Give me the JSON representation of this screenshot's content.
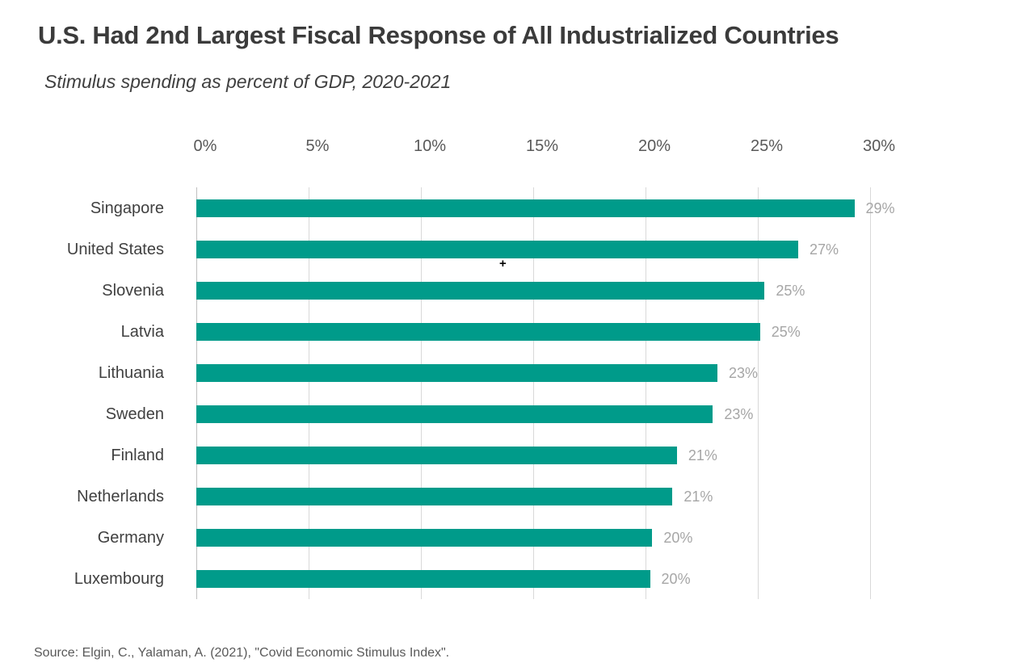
{
  "header": {
    "title": "U.S. Had 2nd Largest Fiscal Response of All Industrialized Countries",
    "subtitle": "Stimulus spending as percent of GDP, 2020-2021"
  },
  "footer": {
    "source": "Source: Elgin, C., Yalaman, A. (2021), \"Covid Economic Stimulus Index\"."
  },
  "cursor": {
    "glyph": "+"
  },
  "chart_data": {
    "type": "bar",
    "orientation": "horizontal",
    "title": "U.S. Had 2nd Largest Fiscal Response of All Industrialized Countries",
    "subtitle": "Stimulus spending as percent of GDP, 2020-2021",
    "categories": [
      "Singapore",
      "United States",
      "Slovenia",
      "Latvia",
      "Lithuania",
      "Sweden",
      "Finland",
      "Netherlands",
      "Germany",
      "Luxembourg"
    ],
    "values": [
      29.3,
      26.8,
      25.3,
      25.1,
      23.2,
      23.0,
      21.4,
      21.2,
      20.3,
      20.2
    ],
    "value_labels": [
      "29%",
      "27%",
      "25%",
      "25%",
      "23%",
      "23%",
      "21%",
      "21%",
      "20%",
      "20%"
    ],
    "xlabel": "",
    "ylabel": "",
    "x_axis": {
      "position": "top",
      "range": [
        0,
        30
      ],
      "ticks": [
        0,
        5,
        10,
        15,
        20,
        25,
        30
      ],
      "tick_labels": [
        "0%",
        "5%",
        "10%",
        "15%",
        "20%",
        "25%",
        "30%"
      ]
    },
    "grid": true,
    "legend": false,
    "colors": {
      "bar": "#009b8a",
      "value_label": "#a6a6a6",
      "category_label": "#404040",
      "tick_label": "#595959",
      "gridline": "#d9d9d9",
      "zero_line": "#bfbfbf"
    }
  }
}
